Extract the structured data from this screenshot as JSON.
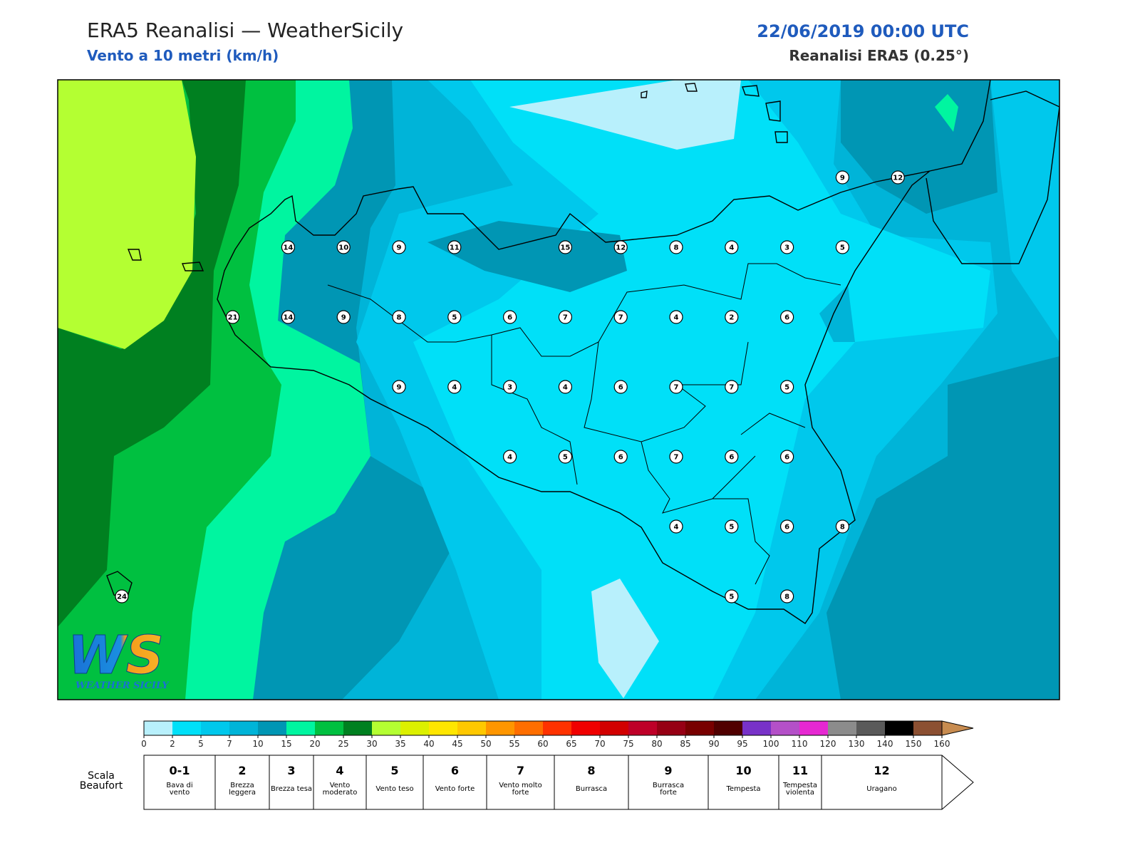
{
  "header": {
    "title": "ERA5 Reanalisi — WeatherSicily",
    "subtitle": "Vento a 10 metri (km/h)",
    "datetime": "22/06/2019 00:00 UTC",
    "source": "Reanalisi ERA5 (0.25°)"
  },
  "map": {
    "wind_speed": [
      9,
      12,
      14,
      10,
      9,
      11,
      15,
      12,
      8,
      4,
      3,
      5,
      21,
      14,
      9,
      8,
      5,
      6,
      7,
      7,
      4,
      2,
      6,
      9,
      4,
      3,
      4,
      6,
      7,
      7,
      5,
      4,
      5,
      6,
      7,
      6,
      6,
      4,
      5,
      6,
      8,
      24,
      5,
      8
    ]
  },
  "logo": {
    "mark": "WS",
    "caption": "WEATHER SICILY"
  },
  "colorbar": {
    "ticks": [
      0,
      2,
      5,
      7,
      10,
      15,
      20,
      25,
      30,
      35,
      40,
      45,
      50,
      55,
      60,
      65,
      70,
      75,
      80,
      85,
      90,
      95,
      100,
      110,
      120,
      130,
      140,
      150,
      160
    ],
    "colors": [
      "#b8f0fc",
      "#00e0f8",
      "#00c8ec",
      "#00b4d8",
      "#0096b4",
      "#00f5a0",
      "#00c040",
      "#008020",
      "#b4ff32",
      "#dcf000",
      "#ffe600",
      "#ffc800",
      "#ff9600",
      "#ff6e00",
      "#ff3200",
      "#f00000",
      "#d20000",
      "#be0028",
      "#960014",
      "#780000",
      "#500000",
      "#7832c8",
      "#b450c8",
      "#e628d2",
      "#8c8c8c",
      "#5a5a5a",
      "#000000",
      "#8c5032",
      "#c88c50"
    ]
  },
  "beaufort": {
    "label": "Scala Beaufort",
    "levels": [
      {
        "force": "0-1",
        "description": "Bava di vento"
      },
      {
        "force": "2",
        "description": "Brezza leggera"
      },
      {
        "force": "3",
        "description": "Brezza tesa"
      },
      {
        "force": "4",
        "description": "Vento moderato"
      },
      {
        "force": "5",
        "description": "Vento teso"
      },
      {
        "force": "6",
        "description": "Vento forte"
      },
      {
        "force": "7",
        "description": "Vento molto forte"
      },
      {
        "force": "8",
        "description": "Burrasca"
      },
      {
        "force": "9",
        "description": "Burrasca forte"
      },
      {
        "force": "10",
        "description": "Tempesta"
      },
      {
        "force": "11",
        "description": "Tempesta violenta"
      },
      {
        "force": "12",
        "description": "Uragano"
      }
    ]
  }
}
